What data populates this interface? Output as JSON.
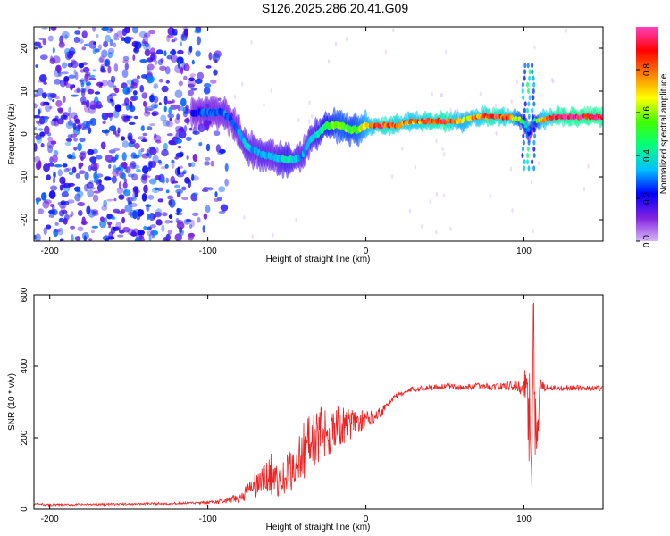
{
  "title": "S126.2025.286.20.41.G09",
  "chart_data": [
    {
      "type": "heatmap",
      "xlabel": "Height of straight line (km)",
      "ylabel": "Frequency (Hz)",
      "xlim": [
        -210,
        150
      ],
      "ylim": [
        -25,
        25
      ],
      "xticks": [
        -200,
        -100,
        0,
        100
      ],
      "yticks": [
        -20,
        -10,
        0,
        10,
        20
      ],
      "noise_region": {
        "x_range": [
          -210,
          -85
        ],
        "y_range": [
          -25,
          25
        ],
        "amplitude": [
          0.1,
          0.3
        ]
      },
      "ridge": {
        "x": [
          -110,
          -100,
          -95,
          -90,
          -85,
          -80,
          -75,
          -70,
          -65,
          -60,
          -55,
          -50,
          -45,
          -40,
          -35,
          -30,
          -25,
          -20,
          -15,
          -10,
          -5,
          0,
          10,
          20,
          30,
          40,
          50,
          60,
          70,
          80,
          90,
          100,
          103,
          106,
          110,
          120,
          130,
          140,
          150
        ],
        "freq": [
          5,
          5,
          5,
          5,
          3,
          0,
          -3,
          -4,
          -5,
          -5,
          -6,
          -6,
          -6,
          -5,
          -1,
          0,
          2,
          2,
          2,
          1,
          1,
          2,
          2,
          2,
          3,
          3,
          3,
          3,
          4,
          4,
          4,
          3,
          0,
          3,
          3,
          4,
          4,
          4,
          4
        ],
        "amplitude": [
          0.2,
          0.3,
          0.25,
          0.3,
          0.25,
          0.3,
          0.35,
          0.3,
          0.35,
          0.3,
          0.35,
          0.4,
          0.35,
          0.3,
          0.35,
          0.4,
          0.5,
          0.55,
          0.6,
          0.55,
          0.6,
          0.7,
          0.85,
          0.8,
          0.75,
          0.85,
          0.9,
          0.7,
          0.75,
          0.9,
          0.8,
          0.5,
          0.2,
          0.3,
          0.7,
          0.9,
          0.95,
          0.95,
          0.95
        ]
      },
      "colorbar": {
        "label": "Normalized spectral amplitude",
        "range": [
          0,
          1
        ],
        "ticks": [
          "0.0",
          "0.2",
          "0.4",
          "0.6",
          "0.8"
        ],
        "colors": [
          "#d8b8f8",
          "#8020e0",
          "#0000ff",
          "#00c0ff",
          "#00ff80",
          "#40ff00",
          "#ffff00",
          "#ff8000",
          "#ff0000",
          "#ff40c0"
        ]
      }
    },
    {
      "type": "line",
      "xlabel": "Height of straight line (km)",
      "ylabel": "SNR (10 * v/v)",
      "xlim": [
        -210,
        150
      ],
      "ylim": [
        0,
        600
      ],
      "xticks": [
        -200,
        -100,
        0,
        100
      ],
      "yticks": [
        0,
        200,
        400,
        600
      ],
      "color": "#ee2222",
      "series": [
        {
          "name": "SNR",
          "x": [
            -210,
            -200,
            -180,
            -160,
            -140,
            -120,
            -100,
            -90,
            -80,
            -75,
            -70,
            -65,
            -60,
            -55,
            -50,
            -45,
            -40,
            -35,
            -30,
            -25,
            -20,
            -15,
            -10,
            -5,
            0,
            5,
            10,
            15,
            20,
            30,
            40,
            50,
            60,
            70,
            80,
            90,
            95,
            100,
            102,
            104,
            105,
            106,
            107,
            108,
            110,
            115,
            120,
            130,
            140,
            150
          ],
          "y": [
            15,
            12,
            13,
            14,
            15,
            16,
            18,
            22,
            30,
            50,
            70,
            80,
            100,
            70,
            90,
            120,
            160,
            190,
            200,
            220,
            230,
            230,
            240,
            245,
            250,
            260,
            275,
            300,
            320,
            335,
            340,
            345,
            340,
            345,
            342,
            345,
            345,
            340,
            380,
            200,
            150,
            500,
            300,
            150,
            350,
            340,
            338,
            340,
            338,
            338
          ]
        }
      ],
      "noise_amplitude": [
        3,
        3,
        3,
        3,
        3,
        3,
        4,
        8,
        15,
        25,
        45,
        40,
        60,
        35,
        70,
        60,
        80,
        85,
        90,
        80,
        70,
        55,
        45,
        35,
        25,
        20,
        15,
        10,
        8,
        8,
        8,
        8,
        8,
        8,
        10,
        12,
        15,
        25,
        140,
        150,
        140,
        120,
        140,
        130,
        20,
        10,
        8,
        8,
        8,
        8
      ]
    }
  ]
}
